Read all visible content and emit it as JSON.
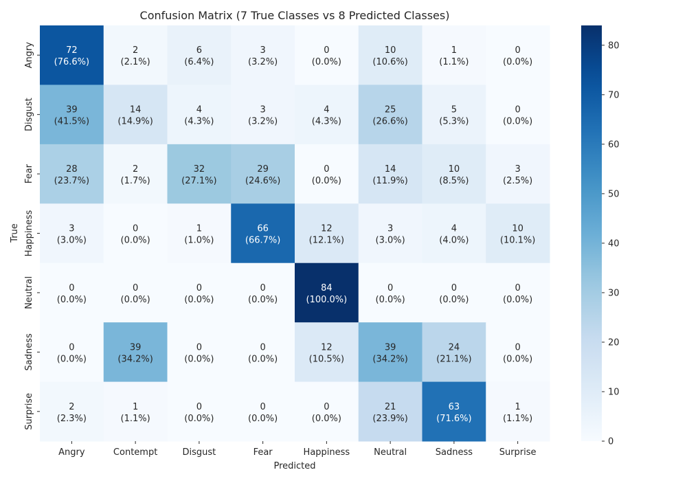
{
  "chart_data": {
    "type": "heatmap",
    "title": "Confusion Matrix (7 True Classes vs 8 Predicted Classes)",
    "xlabel": "Predicted",
    "ylabel": "True",
    "x_categories": [
      "Angry",
      "Contempt",
      "Disgust",
      "Fear",
      "Happiness",
      "Neutral",
      "Sadness",
      "Surprise"
    ],
    "y_categories": [
      "Angry",
      "Disgust",
      "Fear",
      "Happiness",
      "Neutral",
      "Sadness",
      "Surprise"
    ],
    "values": [
      [
        72,
        2,
        6,
        3,
        0,
        10,
        1,
        0
      ],
      [
        39,
        14,
        4,
        3,
        4,
        25,
        5,
        0
      ],
      [
        28,
        2,
        32,
        29,
        0,
        14,
        10,
        3
      ],
      [
        3,
        0,
        1,
        66,
        12,
        3,
        4,
        10
      ],
      [
        0,
        0,
        0,
        0,
        84,
        0,
        0,
        0
      ],
      [
        0,
        39,
        0,
        0,
        12,
        39,
        24,
        0
      ],
      [
        2,
        1,
        0,
        0,
        0,
        21,
        63,
        1
      ]
    ],
    "percent_labels": [
      [
        "(76.6%)",
        "(2.1%)",
        "(6.4%)",
        "(3.2%)",
        "(0.0%)",
        "(10.6%)",
        "(1.1%)",
        "(0.0%)"
      ],
      [
        "(41.5%)",
        "(14.9%)",
        "(4.3%)",
        "(3.2%)",
        "(4.3%)",
        "(26.6%)",
        "(5.3%)",
        "(0.0%)"
      ],
      [
        "(23.7%)",
        "(1.7%)",
        "(27.1%)",
        "(24.6%)",
        "(0.0%)",
        "(11.9%)",
        "(8.5%)",
        "(2.5%)"
      ],
      [
        "(3.0%)",
        "(0.0%)",
        "(1.0%)",
        "(66.7%)",
        "(12.1%)",
        "(3.0%)",
        "(4.0%)",
        "(10.1%)"
      ],
      [
        "(0.0%)",
        "(0.0%)",
        "(0.0%)",
        "(0.0%)",
        "(100.0%)",
        "(0.0%)",
        "(0.0%)",
        "(0.0%)"
      ],
      [
        "(0.0%)",
        "(34.2%)",
        "(0.0%)",
        "(0.0%)",
        "(10.5%)",
        "(34.2%)",
        "(21.1%)",
        "(0.0%)"
      ],
      [
        "(2.3%)",
        "(1.1%)",
        "(0.0%)",
        "(0.0%)",
        "(0.0%)",
        "(23.9%)",
        "(71.6%)",
        "(1.1%)"
      ]
    ],
    "colorbar": {
      "min": 0,
      "max": 84,
      "ticks": [
        0,
        10,
        20,
        30,
        40,
        50,
        60,
        70,
        80
      ],
      "colormap": "Blues"
    },
    "grid": false,
    "legend": "none"
  }
}
